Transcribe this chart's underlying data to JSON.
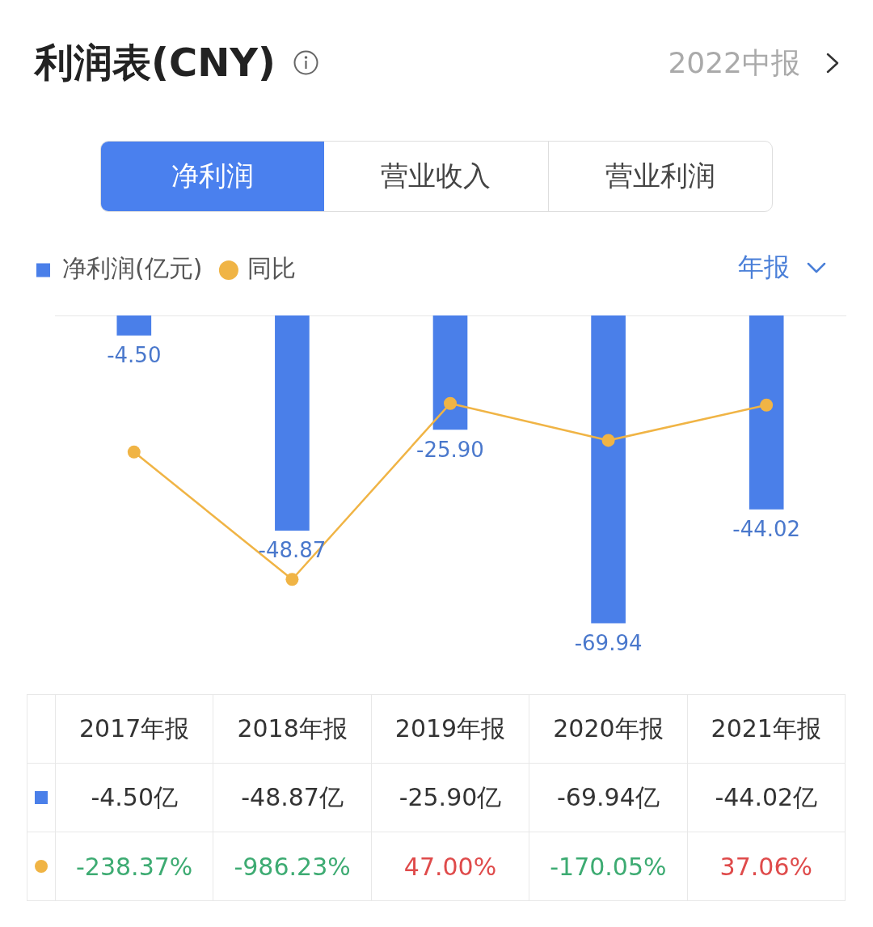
{
  "chart_data": {
    "type": "bar",
    "title": "利润表(CNY)",
    "categories": [
      "2017年报",
      "2018年报",
      "2019年报",
      "2020年报",
      "2021年报"
    ],
    "series": [
      {
        "name": "净利润(亿元)",
        "color": "#4a7fe9",
        "values": [
          -4.5,
          -48.87,
          -25.9,
          -69.94,
          -44.02
        ],
        "value_labels": [
          "-4.50",
          "-48.87",
          "-25.90",
          "-69.94",
          "-44.02"
        ]
      },
      {
        "name": "同比",
        "type": "line",
        "axis": "y2",
        "color": "#f0b445",
        "values": [
          -238.37,
          -986.23,
          47.0,
          -170.05,
          37.06
        ],
        "value_labels": [
          "-238.37%",
          "-986.23%",
          "47.00%",
          "-170.05%",
          "37.06%"
        ]
      }
    ],
    "tick_labels": false,
    "legend": "top left",
    "marker": "circle",
    "line_style": "solid",
    "annotations": [
      "2022中报",
      "净利润",
      "营业收入",
      "营业利润",
      "年报",
      "-4.50亿",
      "-48.87亿",
      "-25.90亿",
      "-69.94亿",
      "-44.02亿"
    ]
  }
}
